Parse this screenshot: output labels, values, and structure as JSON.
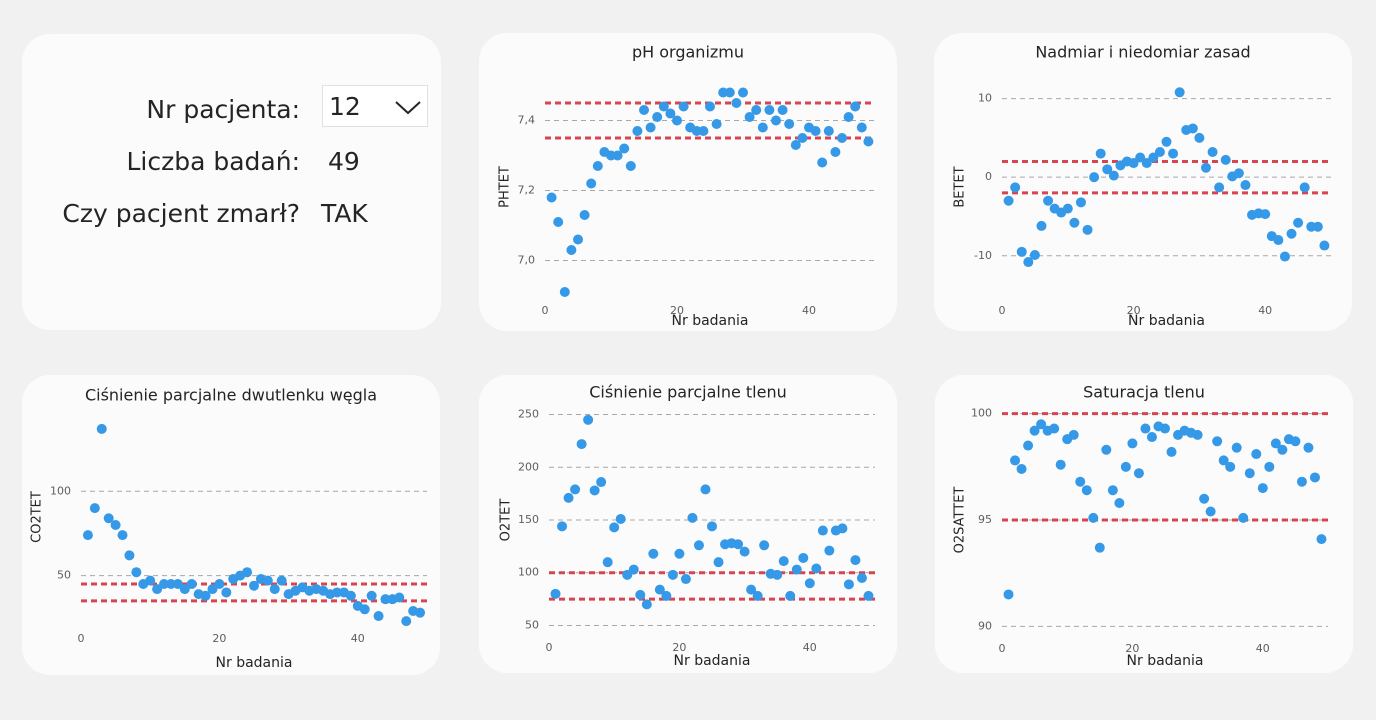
{
  "patient_panel": {
    "patient_label": "Nr pacjenta:",
    "patient_value": "12",
    "count_label": "Liczba badań:",
    "count_value": "49",
    "died_label": "Czy pacjent zmarł?",
    "died_value": "TAK"
  },
  "colors": {
    "point": "#3599e8",
    "reference": "#d64550",
    "grid": "#a8a8a8"
  },
  "chart_data": [
    {
      "id": "ph",
      "type": "scatter",
      "title": "pH organizmu",
      "xlabel": "Nr badania",
      "ylabel": "PHTET",
      "xlim": [
        0,
        50
      ],
      "ylim": [
        6.89,
        7.53
      ],
      "xticks": [
        0,
        20,
        40
      ],
      "yticks": [
        7.0,
        7.2,
        7.4
      ],
      "ytick_labels": [
        "7,0",
        "7,2",
        "7,4"
      ],
      "reference_lines": [
        7.35,
        7.45
      ],
      "x": [
        1,
        2,
        3,
        4,
        5,
        6,
        7,
        8,
        9,
        10,
        11,
        12,
        13,
        14,
        15,
        16,
        17,
        18,
        19,
        20,
        21,
        22,
        23,
        24,
        25,
        26,
        27,
        28,
        29,
        30,
        31,
        32,
        33,
        34,
        35,
        36,
        37,
        38,
        39,
        40,
        41,
        42,
        43,
        44,
        45,
        46,
        47,
        48,
        49
      ],
      "y": [
        7.18,
        7.11,
        6.91,
        7.03,
        7.06,
        7.13,
        7.22,
        7.27,
        7.31,
        7.3,
        7.3,
        7.32,
        7.27,
        7.37,
        7.43,
        7.38,
        7.41,
        7.44,
        7.42,
        7.4,
        7.44,
        7.38,
        7.37,
        7.37,
        7.44,
        7.39,
        7.48,
        7.48,
        7.45,
        7.48,
        7.41,
        7.43,
        7.38,
        7.43,
        7.4,
        7.43,
        7.39,
        7.33,
        7.35,
        7.38,
        7.37,
        7.28,
        7.37,
        7.31,
        7.35,
        7.41,
        7.44,
        7.38,
        7.34
      ]
    },
    {
      "id": "be",
      "type": "scatter",
      "title": "Nadmiar i niedomiar zasad",
      "xlabel": "Nr badania",
      "ylabel": "BETET",
      "xlim": [
        0,
        50
      ],
      "ylim": [
        -15.5,
        13
      ],
      "xticks": [
        0,
        20,
        40
      ],
      "yticks": [
        -10,
        0,
        10
      ],
      "ytick_labels": [
        "-10",
        "0",
        "10"
      ],
      "reference_lines": [
        -2,
        2
      ],
      "x": [
        1,
        2,
        3,
        4,
        5,
        6,
        7,
        8,
        9,
        10,
        11,
        12,
        13,
        14,
        15,
        16,
        17,
        18,
        19,
        20,
        21,
        22,
        23,
        24,
        25,
        26,
        27,
        28,
        29,
        30,
        31,
        32,
        33,
        34,
        35,
        36,
        37,
        38,
        39,
        40,
        41,
        42,
        43,
        44,
        45,
        46,
        47,
        48,
        49
      ],
      "y": [
        -3.0,
        -1.3,
        -9.5,
        -10.8,
        -9.9,
        -6.2,
        -3.0,
        -4.0,
        -4.5,
        -4.0,
        -5.8,
        -3.2,
        -6.7,
        0.0,
        3.0,
        1.0,
        0.2,
        1.5,
        2.0,
        1.8,
        2.5,
        1.8,
        2.5,
        3.2,
        4.5,
        3.0,
        10.8,
        6.0,
        6.2,
        5.0,
        1.2,
        3.2,
        -1.3,
        2.2,
        0.1,
        0.5,
        -1.0,
        -4.8,
        -4.6,
        -4.7,
        -7.5,
        -8.0,
        -10.1,
        -7.2,
        -5.8,
        -1.3,
        -6.3,
        -6.3,
        -8.7
      ]
    },
    {
      "id": "co2",
      "type": "scatter",
      "title": "Ciśnienie parcjalne dwutlenku węgla",
      "xlabel": "Nr badania",
      "ylabel": "CO2TET",
      "xlim": [
        0,
        50
      ],
      "ylim": [
        19.5,
        150
      ],
      "xticks": [
        0,
        20,
        40
      ],
      "yticks": [
        50,
        100
      ],
      "ytick_labels": [
        "50",
        "100"
      ],
      "reference_lines": [
        35,
        45
      ],
      "x": [
        1,
        2,
        3,
        4,
        5,
        6,
        7,
        8,
        9,
        10,
        11,
        12,
        13,
        14,
        15,
        16,
        17,
        18,
        19,
        20,
        21,
        22,
        23,
        24,
        25,
        26,
        27,
        28,
        29,
        30,
        31,
        32,
        33,
        34,
        35,
        36,
        37,
        38,
        39,
        40,
        41,
        42,
        43,
        44,
        45,
        46,
        47,
        48,
        49
      ],
      "y": [
        74,
        90,
        137,
        84,
        80,
        74,
        62,
        52,
        45,
        47,
        42,
        45,
        45,
        45,
        42,
        45,
        39,
        38,
        42,
        45,
        40,
        48,
        50,
        52,
        44,
        48,
        47,
        42,
        47,
        39,
        41,
        43,
        41,
        42,
        41,
        39,
        40,
        40,
        38,
        32,
        30,
        38,
        26,
        36,
        36,
        37,
        23,
        29,
        28
      ]
    },
    {
      "id": "o2",
      "type": "scatter",
      "title": "Ciśnienie parcjalne tlenu",
      "xlabel": "Nr badania",
      "ylabel": "O2TET",
      "xlim": [
        0,
        50
      ],
      "ylim": [
        40,
        260
      ],
      "xticks": [
        0,
        20,
        40
      ],
      "yticks": [
        50,
        100,
        150,
        200,
        250
      ],
      "ytick_labels": [
        "50",
        "100",
        "150",
        "200",
        "250"
      ],
      "reference_lines": [
        75,
        100
      ],
      "x": [
        1,
        2,
        3,
        4,
        5,
        6,
        7,
        8,
        9,
        10,
        11,
        12,
        13,
        14,
        15,
        16,
        17,
        18,
        19,
        20,
        21,
        22,
        23,
        24,
        25,
        26,
        27,
        28,
        29,
        30,
        31,
        32,
        33,
        34,
        35,
        36,
        37,
        38,
        39,
        40,
        41,
        42,
        43,
        44,
        45,
        46,
        47,
        48,
        49
      ],
      "y": [
        80,
        144,
        171,
        179,
        222,
        245,
        178,
        186,
        110,
        143,
        151,
        98,
        103,
        79,
        70,
        118,
        84,
        78,
        98,
        118,
        94,
        152,
        126,
        179,
        144,
        110,
        127,
        128,
        127,
        120,
        84,
        78,
        126,
        99,
        98,
        111,
        78,
        103,
        114,
        90,
        104,
        140,
        121,
        140,
        142,
        89,
        112,
        95,
        78
      ]
    },
    {
      "id": "o2sat",
      "type": "scatter",
      "title": "Saturacja tlenu",
      "xlabel": "Nr badania",
      "ylabel": "O2SATTET",
      "xlim": [
        0,
        50
      ],
      "ylim": [
        89.5,
        100.5
      ],
      "xticks": [
        0,
        20,
        40
      ],
      "yticks": [
        90,
        95,
        100
      ],
      "ytick_labels": [
        "90",
        "95",
        "100"
      ],
      "reference_lines": [
        95,
        100
      ],
      "x": [
        1,
        2,
        3,
        4,
        5,
        6,
        7,
        8,
        9,
        10,
        11,
        12,
        13,
        14,
        15,
        16,
        17,
        18,
        19,
        20,
        21,
        22,
        23,
        24,
        25,
        26,
        27,
        28,
        29,
        30,
        31,
        32,
        33,
        34,
        35,
        36,
        37,
        38,
        39,
        40,
        41,
        42,
        43,
        44,
        45,
        46,
        47,
        48,
        49
      ],
      "y": [
        91.5,
        97.8,
        97.4,
        98.5,
        99.2,
        99.5,
        99.2,
        99.3,
        97.6,
        98.8,
        99.0,
        96.8,
        96.4,
        95.1,
        93.7,
        98.3,
        96.4,
        95.8,
        97.5,
        98.6,
        97.2,
        99.3,
        98.9,
        99.4,
        99.3,
        98.2,
        99.0,
        99.2,
        99.1,
        99.0,
        96.0,
        95.4,
        98.7,
        97.8,
        97.5,
        98.4,
        95.1,
        97.2,
        98.1,
        96.5,
        97.5,
        98.6,
        98.3,
        98.8,
        98.7,
        96.8,
        98.4,
        97.0,
        94.1
      ]
    }
  ]
}
